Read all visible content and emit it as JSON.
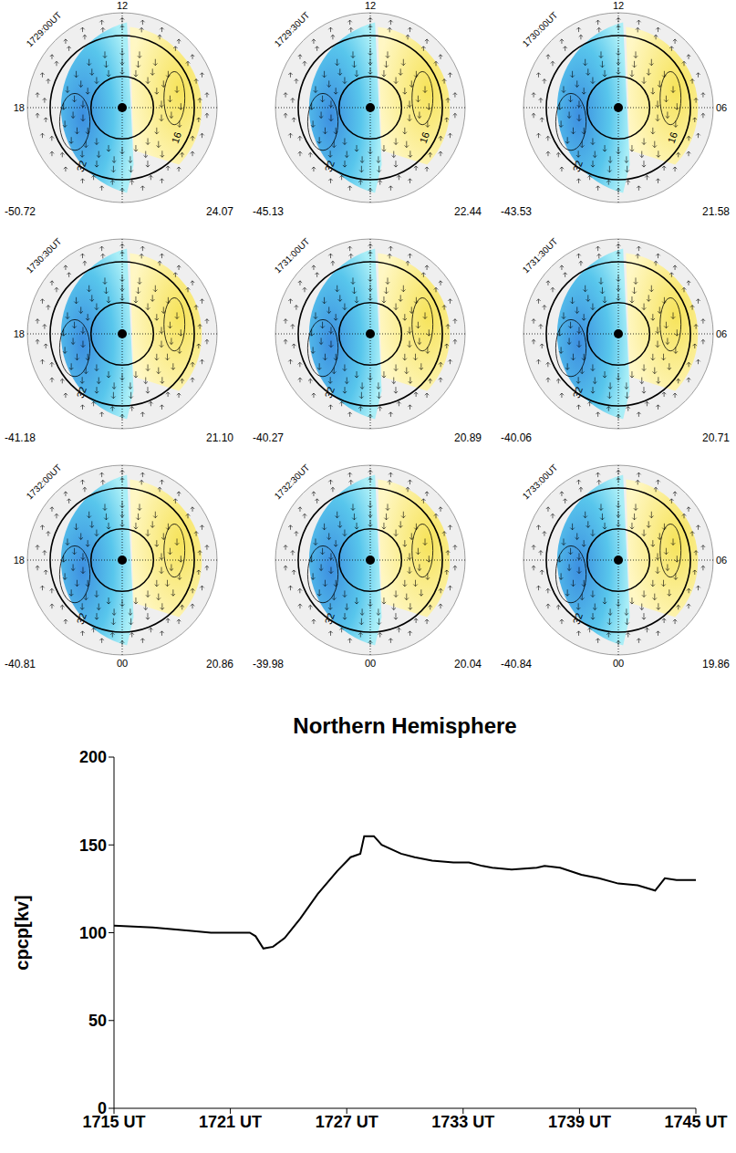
{
  "maps": {
    "mlt_labels": {
      "top": "12",
      "left": "18",
      "right": "06",
      "bottom": "00"
    },
    "panels": [
      {
        "time": "1729:00UT",
        "min": "-50.72",
        "max": "24.07",
        "contour_labels": [
          "16",
          "32"
        ]
      },
      {
        "time": "1729:30UT",
        "min": "-45.13",
        "max": "22.44",
        "contour_labels": [
          "16",
          "32"
        ]
      },
      {
        "time": "1730:00UT",
        "min": "-43.53",
        "max": "21.58",
        "contour_labels": [
          "16",
          "32"
        ]
      },
      {
        "time": "1730:30UT",
        "min": "-41.18",
        "max": "21.10",
        "contour_labels": [
          "32"
        ]
      },
      {
        "time": "1731:00UT",
        "min": "-40.27",
        "max": "20.89",
        "contour_labels": [
          "32"
        ]
      },
      {
        "time": "1731:30UT",
        "min": "-40.06",
        "max": "20.71",
        "contour_labels": [
          "32"
        ]
      },
      {
        "time": "1732:00UT",
        "min": "-40.81",
        "max": "20.86",
        "contour_labels": [
          "32"
        ]
      },
      {
        "time": "1732:30UT",
        "min": "-39.98",
        "max": "20.04",
        "contour_labels": [
          "32"
        ]
      },
      {
        "time": "1733:00UT",
        "min": "-40.84",
        "max": "19.86",
        "contour_labels": [
          "32"
        ]
      }
    ]
  },
  "chart_data": {
    "type": "line",
    "title": "Northern Hemisphere",
    "y_label": "cpcp[kv]",
    "color": "#000000",
    "x": [
      1035,
      1037,
      1039,
      1040,
      1042,
      1042.3,
      1042.7,
      1043.2,
      1043.8,
      1044.6,
      1045.5,
      1046.5,
      1047.2,
      1047.7,
      1047.9,
      1048.4,
      1048.8,
      1049.8,
      1050.5,
      1051.4,
      1052.5,
      1053.3,
      1054,
      1054.5,
      1055.5,
      1056.8,
      1057.2,
      1058,
      1059.1,
      1060,
      1061,
      1062,
      1062.9,
      1063.4,
      1064,
      1065
    ],
    "values": [
      104,
      103,
      101,
      100,
      100,
      98,
      91,
      92,
      97,
      108,
      122,
      135,
      143,
      145,
      155,
      155,
      150,
      145,
      143,
      141,
      140,
      140,
      138,
      137,
      136,
      137,
      138,
      137,
      133,
      131,
      128,
      127,
      124,
      131,
      130,
      130
    ],
    "xlim": [
      1035,
      1065
    ],
    "xticks": [
      {
        "value": 1035,
        "label": "1715 UT"
      },
      {
        "value": 1041,
        "label": "1721 UT"
      },
      {
        "value": 1047,
        "label": "1727 UT"
      },
      {
        "value": 1053,
        "label": "1733 UT"
      },
      {
        "value": 1059,
        "label": "1739 UT"
      },
      {
        "value": 1065,
        "label": "1745 UT"
      }
    ],
    "ylim": [
      0,
      200
    ],
    "yticks": [
      0,
      50,
      100,
      150,
      200
    ],
    "grid": false
  }
}
